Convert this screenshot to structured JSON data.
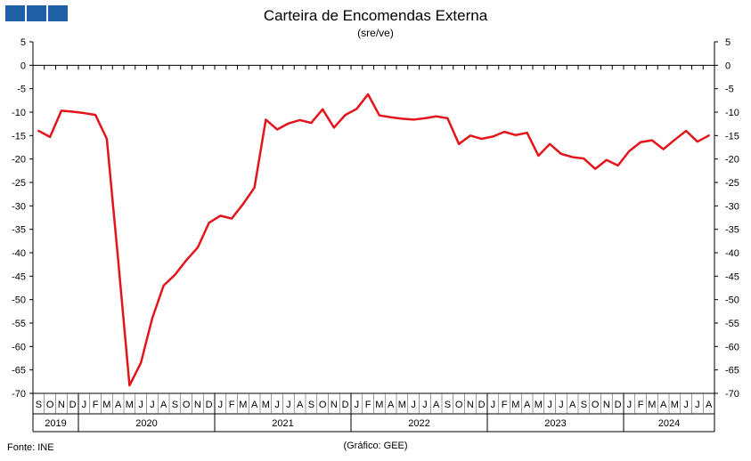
{
  "header": {
    "title": "Carteira de Encomendas Externa",
    "subtitle": "(sre/ve)"
  },
  "footer": {
    "source": "Fonte: INE",
    "credit": "(Gráfico: GEE)"
  },
  "colors": {
    "series": "#e3141b",
    "logo": "#1f5fa6",
    "axis": "#000000"
  },
  "chart_data": {
    "type": "line",
    "title": "Carteira de Encomendas Externa",
    "subtitle": "(sre/ve)",
    "ylim": [
      -70,
      5
    ],
    "yticks": [
      5,
      0,
      -5,
      -10,
      -15,
      -20,
      -25,
      -30,
      -35,
      -40,
      -45,
      -50,
      -55,
      -60,
      -65,
      -70
    ],
    "grid": false,
    "month_labels": [
      "S",
      "O",
      "N",
      "D",
      "J",
      "F",
      "M",
      "A",
      "M",
      "J",
      "J",
      "A",
      "S",
      "O",
      "N",
      "D",
      "J",
      "F",
      "M",
      "A",
      "M",
      "J",
      "J",
      "A",
      "S",
      "O",
      "N",
      "D",
      "J",
      "F",
      "M",
      "A",
      "M",
      "J",
      "J",
      "A",
      "S",
      "O",
      "N",
      "D",
      "J",
      "F",
      "M",
      "A",
      "M",
      "J",
      "J",
      "A",
      "S",
      "O",
      "N",
      "D",
      "J",
      "F",
      "M",
      "A",
      "M",
      "J",
      "J",
      "A"
    ],
    "years": [
      {
        "label": "2019",
        "start": 0,
        "end": 4
      },
      {
        "label": "2020",
        "start": 4,
        "end": 16
      },
      {
        "label": "2021",
        "start": 16,
        "end": 28
      },
      {
        "label": "2022",
        "start": 28,
        "end": 40
      },
      {
        "label": "2023",
        "start": 40,
        "end": 52
      },
      {
        "label": "2024",
        "start": 52,
        "end": 60
      }
    ],
    "series": [
      {
        "values": [
          -14,
          -15.3,
          -9.7,
          -9.9,
          -10.2,
          -10.6,
          -15.7,
          -41.5,
          -68.3,
          -63.5,
          -54,
          -47,
          -44.7,
          -41.6,
          -38.9,
          -33.6,
          -32.1,
          -32.7,
          -29.6,
          -26.1,
          -11.6,
          -13.7,
          -12.4,
          -11.7,
          -12.3,
          -9.4,
          -13.3,
          -10.6,
          -9.3,
          -6.2,
          -10.7,
          -11.1,
          -11.4,
          -11.6,
          -11.3,
          -10.9,
          -11.3,
          -16.8,
          -15,
          -15.7,
          -15.2,
          -14.2,
          -14.9,
          -14.4,
          -19.3,
          -16.8,
          -18.9,
          -19.6,
          -19.9,
          -22.1,
          -20.2,
          -21.4,
          -18.3,
          -16.4,
          -16,
          -17.9,
          -15.9,
          -14,
          -16.3,
          -15
        ]
      }
    ]
  }
}
